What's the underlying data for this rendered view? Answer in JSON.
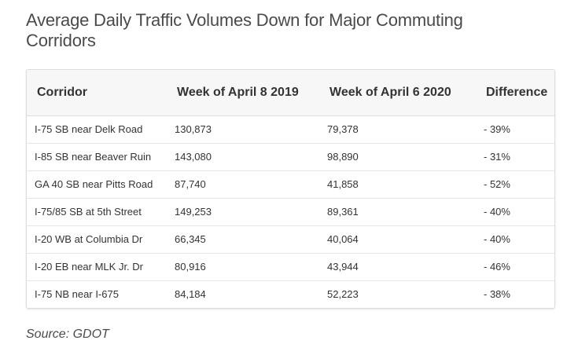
{
  "title": "Average Daily Traffic Volumes Down for Major Commuting Corridors",
  "source": "Source: GDOT",
  "chart_data": {
    "type": "table",
    "columns": [
      "Corridor",
      "Week of April 8 2019",
      "Week of April 6 2020",
      "Difference"
    ],
    "rows": [
      [
        "I-75 SB near Delk Road",
        "130,873",
        "79,378",
        "- 39%"
      ],
      [
        "I-85 SB near Beaver Ruin",
        "143,080",
        "98,890",
        "- 31%"
      ],
      [
        "GA 40 SB near Pitts Road",
        "87,740",
        "41,858",
        "- 52%"
      ],
      [
        "I-75/85 SB at 5th Street",
        "149,253",
        "89,361",
        "- 40%"
      ],
      [
        "I-20 WB at Columbia Dr",
        "66,345",
        "40,064",
        "- 40%"
      ],
      [
        "I-20 EB near MLK Jr. Dr",
        "80,916",
        "43,944",
        "- 46%"
      ],
      [
        "I-75 NB near I-675",
        "84,184",
        "52,223",
        "- 38%"
      ]
    ]
  }
}
